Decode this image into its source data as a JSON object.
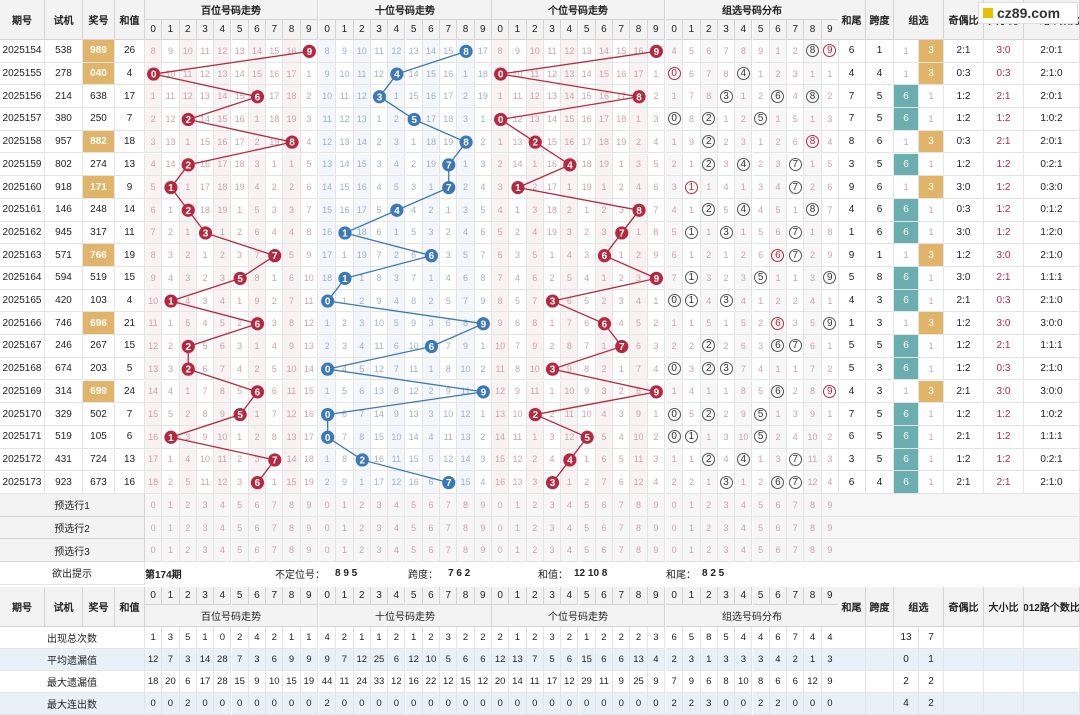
{
  "headers": {
    "period": "期号",
    "machine": "试机",
    "prize": "奖号",
    "sum": "和值",
    "hundreds": "百位号码走势",
    "tens": "十位号码走势",
    "ones": "个位号码走势",
    "group": "组选号码分布",
    "sumtail": "和尾",
    "span": "跨度",
    "groupsel": "组选",
    "oddeven": "奇偶比",
    "bigsmall": "大小比",
    "r012": "012路个数比"
  },
  "rows": [
    {
      "p": "2025154",
      "m": "538",
      "n": "989",
      "s": "26",
      "st": "6",
      "sp": "1",
      "g": "3",
      "oe": "2:1",
      "bs": "3:0",
      "r": "2:0:1"
    },
    {
      "p": "2025155",
      "m": "278",
      "n": "040",
      "s": "4",
      "st": "4",
      "sp": "4",
      "g": "3",
      "oe": "0:3",
      "bs": "0:3",
      "r": "2:1:0"
    },
    {
      "p": "2025156",
      "m": "214",
      "n": "638",
      "s": "17",
      "st": "7",
      "sp": "5",
      "g": "6",
      "oe": "1:2",
      "bs": "2:1",
      "r": "2:0:1"
    },
    {
      "p": "2025157",
      "m": "380",
      "n": "250",
      "s": "7",
      "st": "7",
      "sp": "5",
      "g": "6",
      "oe": "1:2",
      "bs": "1:2",
      "r": "1:0:2"
    },
    {
      "p": "2025158",
      "m": "957",
      "n": "882",
      "s": "18",
      "st": "8",
      "sp": "6",
      "g": "3",
      "oe": "0:3",
      "bs": "2:1",
      "r": "2:0:1"
    },
    {
      "p": "2025159",
      "m": "802",
      "n": "274",
      "s": "13",
      "st": "3",
      "sp": "5",
      "g": "6",
      "oe": "1:2",
      "bs": "1:2",
      "r": "0:2:1"
    },
    {
      "p": "2025160",
      "m": "918",
      "n": "171",
      "s": "9",
      "st": "9",
      "sp": "6",
      "g": "3",
      "oe": "3:0",
      "bs": "1:2",
      "r": "0:3:0"
    },
    {
      "p": "2025161",
      "m": "146",
      "n": "248",
      "s": "14",
      "st": "4",
      "sp": "6",
      "g": "6",
      "oe": "0:3",
      "bs": "1:2",
      "r": "0:1:2"
    },
    {
      "p": "2025162",
      "m": "945",
      "n": "317",
      "s": "11",
      "st": "1",
      "sp": "6",
      "g": "6",
      "oe": "3:0",
      "bs": "1:2",
      "r": "1:2:0"
    },
    {
      "p": "2025163",
      "m": "571",
      "n": "766",
      "s": "19",
      "st": "9",
      "sp": "1",
      "g": "3",
      "oe": "1:2",
      "bs": "3:0",
      "r": "2:1:0"
    },
    {
      "p": "2025164",
      "m": "594",
      "n": "519",
      "s": "15",
      "st": "5",
      "sp": "8",
      "g": "6",
      "oe": "3:0",
      "bs": "2:1",
      "r": "1:1:1"
    },
    {
      "p": "2025165",
      "m": "420",
      "n": "103",
      "s": "4",
      "st": "4",
      "sp": "3",
      "g": "6",
      "oe": "2:1",
      "bs": "0:3",
      "r": "2:1:0"
    },
    {
      "p": "2025166",
      "m": "746",
      "n": "696",
      "s": "21",
      "st": "1",
      "sp": "3",
      "g": "3",
      "oe": "1:2",
      "bs": "3:0",
      "r": "3:0:0"
    },
    {
      "p": "2025167",
      "m": "246",
      "n": "267",
      "s": "15",
      "st": "5",
      "sp": "5",
      "g": "6",
      "oe": "1:2",
      "bs": "2:1",
      "r": "1:1:1"
    },
    {
      "p": "2025168",
      "m": "674",
      "n": "203",
      "s": "5",
      "st": "5",
      "sp": "3",
      "g": "6",
      "oe": "1:2",
      "bs": "0:3",
      "r": "2:1:0"
    },
    {
      "p": "2025169",
      "m": "314",
      "n": "699",
      "s": "24",
      "st": "4",
      "sp": "3",
      "g": "3",
      "oe": "2:1",
      "bs": "3:0",
      "r": "3:0:0"
    },
    {
      "p": "2025170",
      "m": "329",
      "n": "502",
      "s": "7",
      "st": "7",
      "sp": "5",
      "g": "6",
      "oe": "1:2",
      "bs": "1:2",
      "r": "1:0:2"
    },
    {
      "p": "2025171",
      "m": "519",
      "n": "105",
      "s": "6",
      "st": "6",
      "sp": "5",
      "g": "6",
      "oe": "2:1",
      "bs": "1:2",
      "r": "1:1:1"
    },
    {
      "p": "2025172",
      "m": "431",
      "n": "724",
      "s": "13",
      "st": "3",
      "sp": "5",
      "g": "6",
      "oe": "1:2",
      "bs": "1:2",
      "r": "0:2:1"
    },
    {
      "p": "2025173",
      "m": "923",
      "n": "673",
      "s": "16",
      "st": "6",
      "sp": "4",
      "g": "6",
      "oe": "2:1",
      "bs": "2:1",
      "r": "2:1:0"
    }
  ],
  "preselect": [
    "预选行1",
    "预选行2",
    "预选行3"
  ],
  "hint": {
    "label": "欲出提示",
    "issue": "第174期",
    "pos_label": "不定位号：",
    "pos": "8 9 5",
    "span_label": "跨度：",
    "span": "7 6 2",
    "sum_label": "和值：",
    "sum": "12 10 8",
    "tail_label": "和尾：",
    "tail": "8 2 5"
  },
  "stats": [
    {
      "label": "出现总次数",
      "h": "1 3 5 1 0 2 4 2 1 1",
      "t": "4 2 1 1 2 1 2 3 2 2",
      "o": "2 1 2 3 2 1 2 2 2 3",
      "g": "6 5 8 5 4 4 6 7 4 4",
      "gs": [
        "13",
        "7"
      ]
    },
    {
      "label": "平均遗漏值",
      "h": "12 7 3 14 28 7 3 6 9 9",
      "t": "9 7 12 25 6 12 10 5 6 6",
      "o": "12 13 7 5 6 15 6 6 13 4",
      "g": "2 3 1 3 3 3 4 2 1 3",
      "gs": [
        "0",
        "1"
      ]
    },
    {
      "label": "最大遗漏值",
      "h": "18 20 6 17 28 15 9 10 15 19",
      "t": "44 11 24 33 12 16 22 12 15 12",
      "o": "20 14 11 17 12 29 11 9 25 9",
      "g": "7 9 6 8 10 8 6 6 12 9",
      "gs": [
        "2",
        "2"
      ]
    },
    {
      "label": "最大连出数",
      "h": "0 0 2 0 0 0 0 0 0 0",
      "t": "2 0 0 0 0 0 0 0 0 0",
      "o": "0 0 0 0 0 0 0 0 0 0",
      "g": "2 2 3 0 0 2 2 0 0 0",
      "gs": [
        "4",
        "2"
      ]
    }
  ],
  "digits": [
    "0",
    "1",
    "2",
    "3",
    "4",
    "5",
    "6",
    "7",
    "8",
    "9"
  ],
  "logo": "cz89.com",
  "colors": {
    "red": "#b5283f",
    "blue": "#3a78b6",
    "gold": "#e0b56a",
    "green": "#6aaeb0"
  }
}
